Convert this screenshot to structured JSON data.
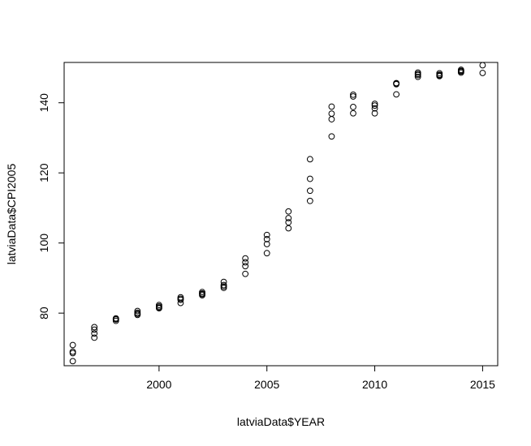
{
  "chart_data": {
    "type": "scatter",
    "xlabel": "latviaData$YEAR",
    "ylabel": "latviaData$CPI2005",
    "xlim": [
      1995.6,
      2015.7
    ],
    "ylim": [
      65,
      151.5
    ],
    "x_ticks": [
      2000,
      2005,
      2010,
      2015
    ],
    "y_ticks": [
      80,
      100,
      120,
      140
    ],
    "x_tick_labels": [
      "2000",
      "2005",
      "2010",
      "2015"
    ],
    "y_tick_labels": [
      "80",
      "100",
      "120",
      "140"
    ],
    "marker": "open-circle",
    "color": "#000000",
    "points": [
      {
        "x": 1996,
        "y": 66.3
      },
      {
        "x": 1996,
        "y": 68.6
      },
      {
        "x": 1996,
        "y": 69.0
      },
      {
        "x": 1996,
        "y": 70.9
      },
      {
        "x": 1997,
        "y": 73.0
      },
      {
        "x": 1997,
        "y": 74.2
      },
      {
        "x": 1997,
        "y": 75.3
      },
      {
        "x": 1997,
        "y": 76.0
      },
      {
        "x": 1998,
        "y": 77.8
      },
      {
        "x": 1998,
        "y": 78.2
      },
      {
        "x": 1998,
        "y": 78.5
      },
      {
        "x": 1998,
        "y": 78.3
      },
      {
        "x": 1999,
        "y": 79.5
      },
      {
        "x": 1999,
        "y": 80.1
      },
      {
        "x": 1999,
        "y": 80.6
      },
      {
        "x": 1999,
        "y": 79.8
      },
      {
        "x": 2000,
        "y": 81.4
      },
      {
        "x": 2000,
        "y": 81.9
      },
      {
        "x": 2000,
        "y": 82.3
      },
      {
        "x": 2000,
        "y": 81.6
      },
      {
        "x": 2001,
        "y": 82.9
      },
      {
        "x": 2001,
        "y": 84.1
      },
      {
        "x": 2001,
        "y": 84.5
      },
      {
        "x": 2001,
        "y": 83.8
      },
      {
        "x": 2002,
        "y": 85.1
      },
      {
        "x": 2002,
        "y": 85.6
      },
      {
        "x": 2002,
        "y": 86.0
      },
      {
        "x": 2002,
        "y": 85.4
      },
      {
        "x": 2003,
        "y": 87.2
      },
      {
        "x": 2003,
        "y": 88.0
      },
      {
        "x": 2003,
        "y": 88.9
      },
      {
        "x": 2003,
        "y": 87.6
      },
      {
        "x": 2004,
        "y": 91.2
      },
      {
        "x": 2004,
        "y": 93.4
      },
      {
        "x": 2004,
        "y": 94.5
      },
      {
        "x": 2004,
        "y": 95.6
      },
      {
        "x": 2005,
        "y": 97.1
      },
      {
        "x": 2005,
        "y": 99.7
      },
      {
        "x": 2005,
        "y": 101.1
      },
      {
        "x": 2005,
        "y": 102.3
      },
      {
        "x": 2006,
        "y": 104.2
      },
      {
        "x": 2006,
        "y": 105.9
      },
      {
        "x": 2006,
        "y": 107.1
      },
      {
        "x": 2006,
        "y": 109.0
      },
      {
        "x": 2007,
        "y": 112.0
      },
      {
        "x": 2007,
        "y": 114.9
      },
      {
        "x": 2007,
        "y": 118.3
      },
      {
        "x": 2007,
        "y": 123.9
      },
      {
        "x": 2008,
        "y": 130.4
      },
      {
        "x": 2008,
        "y": 135.3
      },
      {
        "x": 2008,
        "y": 136.9
      },
      {
        "x": 2008,
        "y": 138.9
      },
      {
        "x": 2009,
        "y": 137.0
      },
      {
        "x": 2009,
        "y": 138.8
      },
      {
        "x": 2009,
        "y": 141.8
      },
      {
        "x": 2009,
        "y": 142.3
      },
      {
        "x": 2010,
        "y": 137.0
      },
      {
        "x": 2010,
        "y": 138.4
      },
      {
        "x": 2010,
        "y": 139.2
      },
      {
        "x": 2010,
        "y": 139.7
      },
      {
        "x": 2011,
        "y": 142.4
      },
      {
        "x": 2011,
        "y": 145.3
      },
      {
        "x": 2011,
        "y": 145.6
      },
      {
        "x": 2011,
        "y": 145.5
      },
      {
        "x": 2012,
        "y": 147.4
      },
      {
        "x": 2012,
        "y": 147.9
      },
      {
        "x": 2012,
        "y": 148.6
      },
      {
        "x": 2012,
        "y": 148.2
      },
      {
        "x": 2013,
        "y": 147.6
      },
      {
        "x": 2013,
        "y": 148.0
      },
      {
        "x": 2013,
        "y": 148.4
      },
      {
        "x": 2013,
        "y": 147.8
      },
      {
        "x": 2014,
        "y": 148.6
      },
      {
        "x": 2014,
        "y": 149.1
      },
      {
        "x": 2014,
        "y": 149.4
      },
      {
        "x": 2014,
        "y": 148.9
      },
      {
        "x": 2015,
        "y": 148.5
      },
      {
        "x": 2015,
        "y": 150.7
      }
    ]
  }
}
